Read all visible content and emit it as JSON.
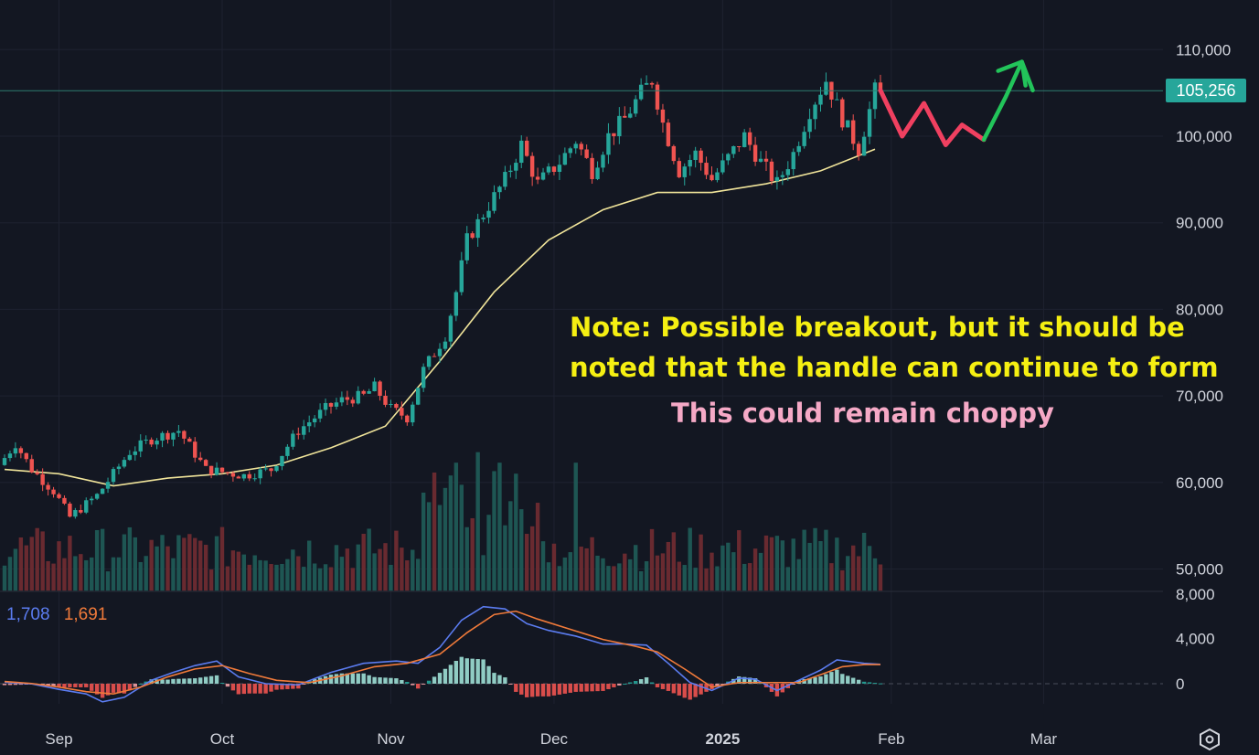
{
  "price_tag": "105,256",
  "note": {
    "line1": "Note:  Possible breakout, but it should be",
    "line2": "noted that the handle can continue to form",
    "line3": "This could remain choppy"
  },
  "macd": {
    "macd_value": "1,708",
    "signal_value": "1,691",
    "macd_color": "#5b7cf0",
    "signal_color": "#f07a3a"
  },
  "colors": {
    "background": "#131722",
    "up": "#26a69a",
    "down": "#ef5350",
    "ma": "#f0e49a",
    "annotation_red": "#f04060",
    "annotation_green": "#22c45a"
  },
  "icons": {
    "settings": "settings-hexagon-icon"
  },
  "chart_data": [
    {
      "type": "candlestick",
      "title": "",
      "price_axis": {
        "ticks": [
          "110,000",
          "100,000",
          "90,000",
          "80,000",
          "70,000",
          "60,000",
          "50,000"
        ],
        "tick_values": [
          110000,
          100000,
          90000,
          80000,
          70000,
          60000,
          50000
        ],
        "range": [
          47500,
          115800
        ]
      },
      "time_axis": {
        "labels": [
          "Sep",
          "Oct",
          "Nov",
          "Dec",
          "2025",
          "Feb",
          "Mar"
        ],
        "label_bar_index": [
          10,
          40,
          71,
          101,
          132,
          163,
          191
        ]
      },
      "current_price": 105256,
      "moving_average_points": [
        [
          0,
          61500
        ],
        [
          10,
          61000
        ],
        [
          20,
          59600
        ],
        [
          30,
          60500
        ],
        [
          40,
          61000
        ],
        [
          50,
          62000
        ],
        [
          60,
          64000
        ],
        [
          70,
          66500
        ],
        [
          80,
          74000
        ],
        [
          90,
          82000
        ],
        [
          100,
          88000
        ],
        [
          110,
          91500
        ],
        [
          120,
          93500
        ],
        [
          130,
          93500
        ],
        [
          140,
          94500
        ],
        [
          150,
          96000
        ],
        [
          160,
          98500
        ]
      ],
      "hand_drawn_projection": {
        "red_path": [
          [
            161,
            105300
          ],
          [
            165,
            100000
          ],
          [
            169,
            103800
          ],
          [
            173,
            99000
          ],
          [
            176,
            101300
          ],
          [
            180,
            99600
          ]
        ],
        "green_path": [
          [
            180,
            99600
          ],
          [
            184,
            104500
          ],
          [
            187,
            108600
          ],
          [
            189,
            105300
          ]
        ]
      },
      "grid": true
    },
    {
      "type": "bar",
      "name": "volume",
      "baseline_price": 47500
    },
    {
      "type": "line",
      "name": "MACD",
      "y_ticks": [
        "8,000",
        "4,000",
        "0"
      ],
      "y_tick_values": [
        8000,
        4000,
        0
      ],
      "macd_line": [
        [
          0,
          120
        ],
        [
          5,
          -20
        ],
        [
          10,
          -500
        ],
        [
          15,
          -900
        ],
        [
          18,
          -1600
        ],
        [
          22,
          -1200
        ],
        [
          27,
          300
        ],
        [
          31,
          1000
        ],
        [
          35,
          1600
        ],
        [
          39,
          2000
        ],
        [
          43,
          600
        ],
        [
          48,
          0
        ],
        [
          54,
          -100
        ],
        [
          60,
          1000
        ],
        [
          66,
          1800
        ],
        [
          72,
          2000
        ],
        [
          76,
          1800
        ],
        [
          80,
          3200
        ],
        [
          84,
          5600
        ],
        [
          88,
          6800
        ],
        [
          92,
          6600
        ],
        [
          96,
          5300
        ],
        [
          100,
          4700
        ],
        [
          105,
          4200
        ],
        [
          110,
          3500
        ],
        [
          114,
          3500
        ],
        [
          118,
          3400
        ],
        [
          122,
          1800
        ],
        [
          126,
          100
        ],
        [
          130,
          -600
        ],
        [
          135,
          500
        ],
        [
          138,
          400
        ],
        [
          142,
          -600
        ],
        [
          146,
          300
        ],
        [
          150,
          1200
        ],
        [
          153,
          2100
        ],
        [
          158,
          1800
        ],
        [
          161,
          1708
        ]
      ],
      "signal_line": [
        [
          0,
          200
        ],
        [
          5,
          20
        ],
        [
          10,
          -300
        ],
        [
          15,
          -700
        ],
        [
          20,
          -900
        ],
        [
          25,
          -300
        ],
        [
          30,
          600
        ],
        [
          35,
          1300
        ],
        [
          40,
          1600
        ],
        [
          45,
          900
        ],
        [
          50,
          300
        ],
        [
          56,
          100
        ],
        [
          62,
          700
        ],
        [
          68,
          1500
        ],
        [
          74,
          1800
        ],
        [
          80,
          2600
        ],
        [
          85,
          4500
        ],
        [
          90,
          6100
        ],
        [
          94,
          6400
        ],
        [
          98,
          5700
        ],
        [
          104,
          4800
        ],
        [
          110,
          3900
        ],
        [
          116,
          3300
        ],
        [
          120,
          2800
        ],
        [
          125,
          1300
        ],
        [
          130,
          -300
        ],
        [
          135,
          100
        ],
        [
          140,
          100
        ],
        [
          146,
          100
        ],
        [
          150,
          800
        ],
        [
          154,
          1500
        ],
        [
          158,
          1690
        ],
        [
          161,
          1691
        ]
      ],
      "histogram_color_up": "#26a69a",
      "histogram_color_down": "#ef5350"
    }
  ]
}
